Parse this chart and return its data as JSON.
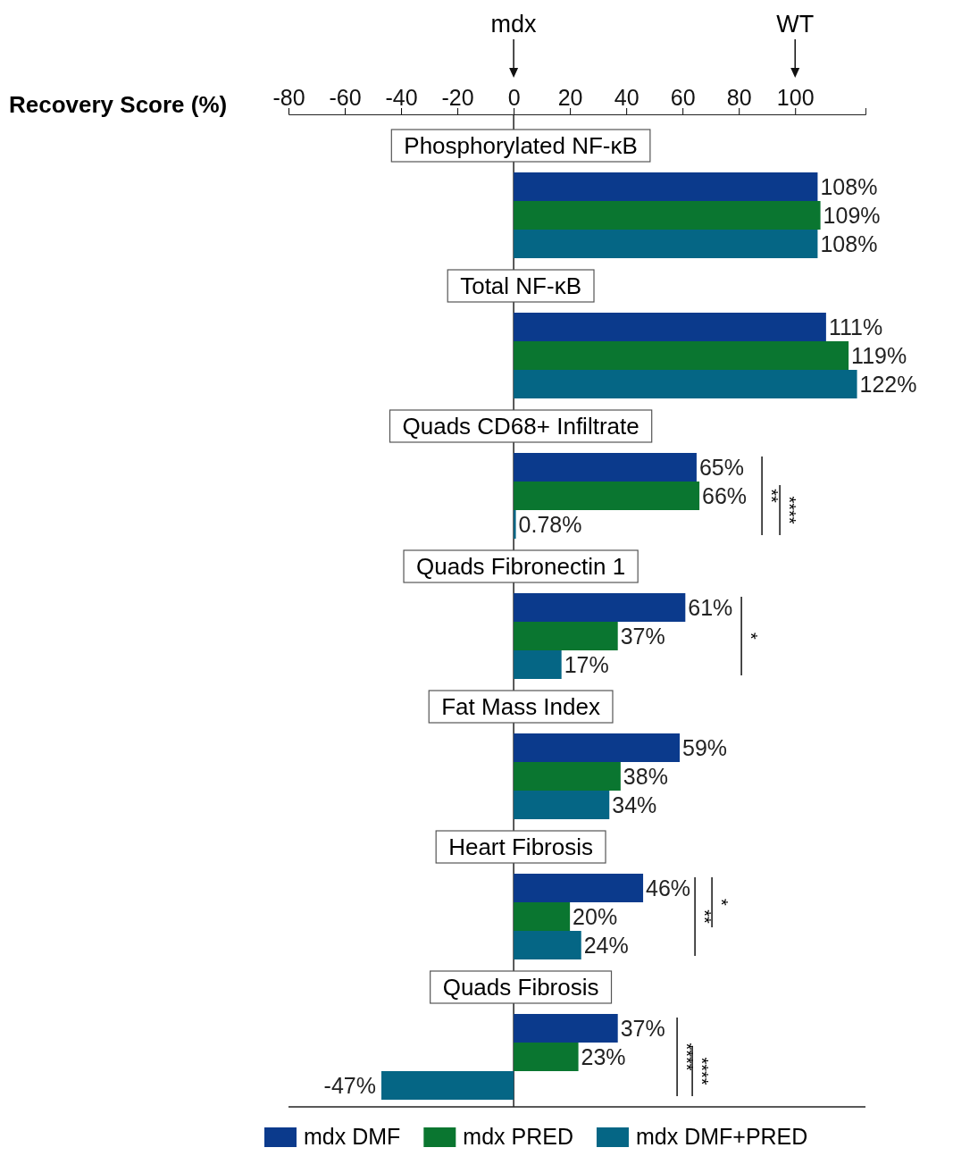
{
  "chart_data": {
    "type": "bar",
    "orientation": "horizontal",
    "xlabel": "Recovery Score (%)",
    "categories": [
      "Phosphorylated NF-κB",
      "Total NF-κB",
      "Quads CD68+ Infiltrate",
      "Quads Fibronectin 1",
      "Fat Mass Index",
      "Heart Fibrosis",
      "Quads Fibrosis"
    ],
    "series": [
      {
        "name": "mdx DMF",
        "color": "#0b3a8c",
        "values": [
          108,
          111,
          65,
          61,
          59,
          46,
          37
        ],
        "value_labels": [
          "108%",
          "111%",
          "65%",
          "61%",
          "59%",
          "46%",
          "37%"
        ]
      },
      {
        "name": "mdx PRED",
        "color": "#0a7630",
        "values": [
          109,
          119,
          66,
          37,
          38,
          20,
          23
        ],
        "value_labels": [
          "109%",
          "119%",
          "66%",
          "37%",
          "38%",
          "20%",
          "23%"
        ]
      },
      {
        "name": "mdx DMF+PRED",
        "color": "#056685",
        "values": [
          108,
          122,
          0.78,
          17,
          34,
          24,
          -47
        ],
        "value_labels": [
          "108%",
          "122%",
          "0.78%",
          "17%",
          "34%",
          "24%",
          "-47%"
        ]
      }
    ],
    "xlim": [
      -80,
      125
    ],
    "xticks": [
      -80,
      -60,
      -40,
      -20,
      0,
      20,
      40,
      60,
      80,
      100
    ],
    "legend": "bottom",
    "annotations": [
      "mdx",
      "WT",
      "**",
      "****",
      "*",
      "**",
      "*",
      "****",
      "****"
    ]
  }
}
